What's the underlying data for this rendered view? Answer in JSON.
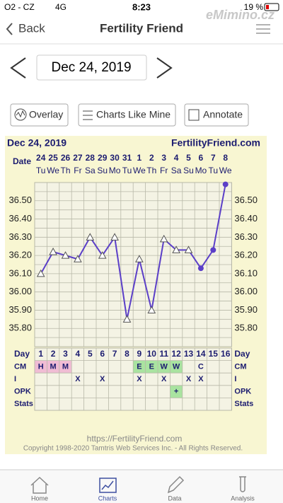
{
  "status_bar": {
    "carrier": "O2 - CZ",
    "network": "4G",
    "time": "8:23",
    "battery": "19 %",
    "watermark": "eMimino.cz"
  },
  "nav": {
    "back": "Back",
    "title": "Fertility Friend"
  },
  "date_picker": {
    "date": "Dec 24, 2019"
  },
  "buttons": [
    "Overlay",
    "Charts Like Mine",
    "Annotate"
  ],
  "chart_data": {
    "type": "line",
    "title": "Dec 24, 2019",
    "subtitle": "FertilityFriend.com",
    "date_label": "Date",
    "day_label": "Day",
    "categories": [
      "1",
      "2",
      "3",
      "4",
      "5",
      "6",
      "7",
      "8",
      "9",
      "10",
      "11",
      "12",
      "13",
      "14",
      "15",
      "16"
    ],
    "dates": [
      "24",
      "25",
      "26",
      "27",
      "28",
      "29",
      "30",
      "31",
      "1",
      "2",
      "3",
      "4",
      "5",
      "6",
      "7",
      "8"
    ],
    "weekdays": [
      "Tu",
      "We",
      "Th",
      "Fr",
      "Sa",
      "Su",
      "Mo",
      "Tu",
      "We",
      "Th",
      "Fr",
      "Sa",
      "Su",
      "Mo",
      "Tu",
      "We"
    ],
    "values": [
      36.1,
      36.22,
      36.2,
      36.18,
      36.3,
      36.2,
      36.3,
      35.85,
      36.18,
      35.9,
      36.29,
      36.23,
      36.23,
      36.13,
      36.23,
      36.59
    ],
    "markers": [
      "triangle",
      "triangle",
      "triangle",
      "triangle",
      "triangle",
      "triangle",
      "triangle",
      "triangle",
      "triangle",
      "triangle",
      "triangle",
      "triangle",
      "triangle",
      "circle",
      "circle",
      "circle"
    ],
    "color": "#5b3fc8",
    "ylim": [
      35.7,
      36.6
    ],
    "yticks": [
      {
        "value": 35.8,
        "label": "35.80"
      },
      {
        "value": 35.9,
        "label": "35.90"
      },
      {
        "value": 36.0,
        "label": "36.00"
      },
      {
        "value": 36.1,
        "label": "36.10"
      },
      {
        "value": 36.2,
        "label": "36.20"
      },
      {
        "value": 36.3,
        "label": "36.30"
      },
      {
        "value": 36.4,
        "label": "36.40"
      },
      {
        "value": 36.5,
        "label": "36.50"
      }
    ],
    "minor_yticks": [
      35.75,
      35.85,
      35.95,
      36.05,
      36.15,
      36.25,
      36.35,
      36.45,
      36.55
    ],
    "grid": true,
    "rows": [
      {
        "label": "CM",
        "cells": [
          "H",
          "M",
          "M",
          null,
          null,
          null,
          null,
          null,
          "E",
          "E",
          "W",
          "W",
          null,
          "C",
          null,
          null
        ],
        "highlight": [
          "#f0bcd4",
          "#f0bcd4",
          "#f0bcd4",
          null,
          null,
          null,
          null,
          null,
          "#a9e3a0",
          "#a9e3a0",
          "#a9e3a0",
          "#a9e3a0",
          null,
          null,
          null,
          null
        ]
      },
      {
        "label": "I",
        "cells": [
          null,
          null,
          null,
          "X",
          null,
          "X",
          null,
          null,
          "X",
          null,
          "X",
          null,
          "X",
          "X",
          null,
          null
        ],
        "highlight": [
          null,
          null,
          null,
          null,
          null,
          null,
          null,
          null,
          null,
          null,
          null,
          null,
          null,
          null,
          null,
          null
        ]
      },
      {
        "label": "OPK",
        "cells": [
          null,
          null,
          null,
          null,
          null,
          null,
          null,
          null,
          null,
          null,
          null,
          "+",
          null,
          null,
          null,
          null
        ],
        "highlight": [
          null,
          null,
          null,
          null,
          null,
          null,
          null,
          null,
          null,
          null,
          null,
          "#a9e3a0",
          null,
          null,
          null,
          null
        ]
      },
      {
        "label": "Stats",
        "cells": [
          null,
          null,
          null,
          null,
          null,
          null,
          null,
          null,
          null,
          null,
          null,
          null,
          null,
          null,
          null,
          null
        ],
        "highlight": [
          null,
          null,
          null,
          null,
          null,
          null,
          null,
          null,
          null,
          null,
          null,
          null,
          null,
          null,
          null,
          null
        ]
      }
    ]
  },
  "footer": {
    "url": "https://FertilityFriend.com",
    "copyright": "Copyright 1998-2020 Tamtris Web Services Inc. - All Rights Reserved."
  },
  "tabs": [
    "Home",
    "Charts",
    "Data",
    "Analysis"
  ]
}
